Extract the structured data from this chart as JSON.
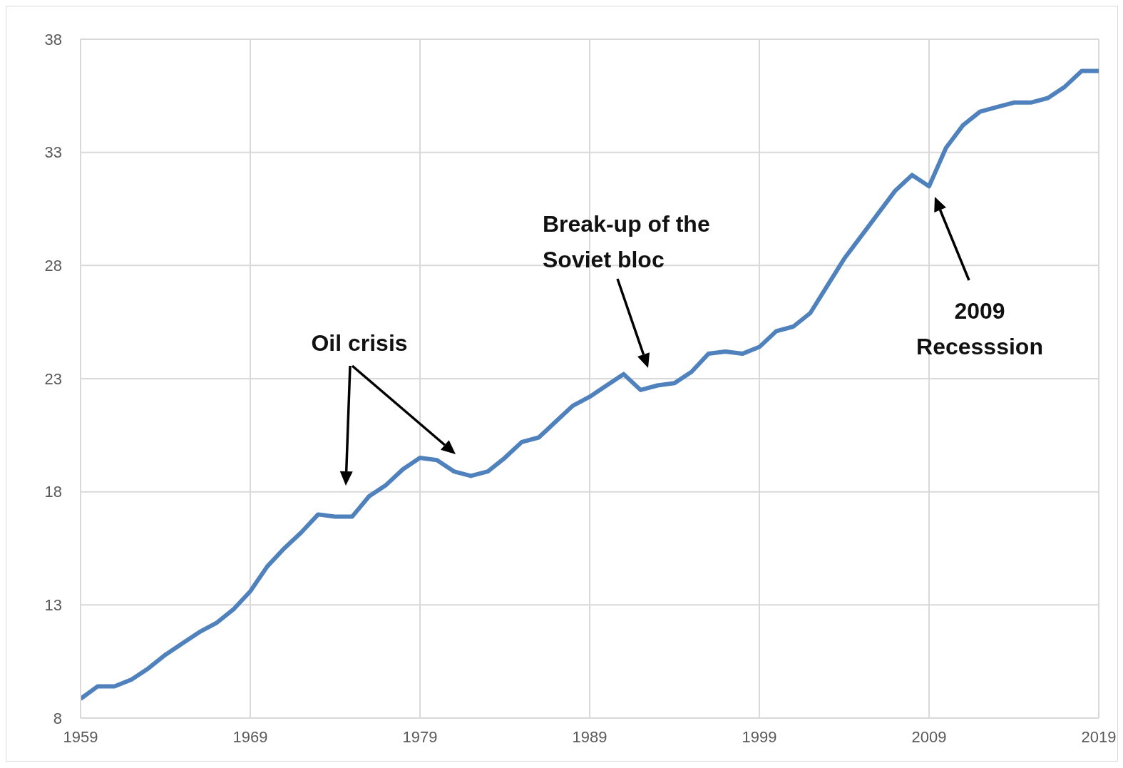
{
  "chart_data": {
    "type": "line",
    "x": [
      1959,
      1960,
      1961,
      1962,
      1963,
      1964,
      1965,
      1966,
      1967,
      1968,
      1969,
      1970,
      1971,
      1972,
      1973,
      1974,
      1975,
      1976,
      1977,
      1978,
      1979,
      1980,
      1981,
      1982,
      1983,
      1984,
      1985,
      1986,
      1987,
      1988,
      1989,
      1990,
      1991,
      1992,
      1993,
      1994,
      1995,
      1996,
      1997,
      1998,
      1999,
      2000,
      2001,
      2002,
      2003,
      2004,
      2005,
      2006,
      2007,
      2008,
      2009,
      2010,
      2011,
      2012,
      2013,
      2014,
      2015,
      2016,
      2017,
      2018,
      2019
    ],
    "series": [
      {
        "color": "#4f81bd",
        "values": [
          8.85,
          9.4,
          9.4,
          9.7,
          10.2,
          10.8,
          11.3,
          11.8,
          12.2,
          12.8,
          13.6,
          14.7,
          15.5,
          16.2,
          17.0,
          16.9,
          16.9,
          17.8,
          18.3,
          19.0,
          19.5,
          19.4,
          18.9,
          18.7,
          18.9,
          19.5,
          20.2,
          20.4,
          21.1,
          21.8,
          22.2,
          22.7,
          23.2,
          22.5,
          22.7,
          22.8,
          23.3,
          24.1,
          24.2,
          24.1,
          24.4,
          25.1,
          25.3,
          25.9,
          27.1,
          28.3,
          29.3,
          30.3,
          31.3,
          32.0,
          31.5,
          33.2,
          34.2,
          34.8,
          35.0,
          35.2,
          35.2,
          35.4,
          35.9,
          36.6,
          36.6
        ]
      }
    ],
    "xlim": [
      1959,
      2019
    ],
    "xticks": [
      1959,
      1969,
      1979,
      1989,
      1999,
      2009,
      2019
    ],
    "ylim": [
      8,
      38
    ],
    "yticks": [
      8,
      13,
      18,
      23,
      28,
      33,
      38
    ],
    "grid": true,
    "marker": "none",
    "line_style": "solid",
    "annotations": [
      "Oil crisis",
      "Break-up of the Soviet bloc",
      "2009 Recesssion"
    ]
  }
}
